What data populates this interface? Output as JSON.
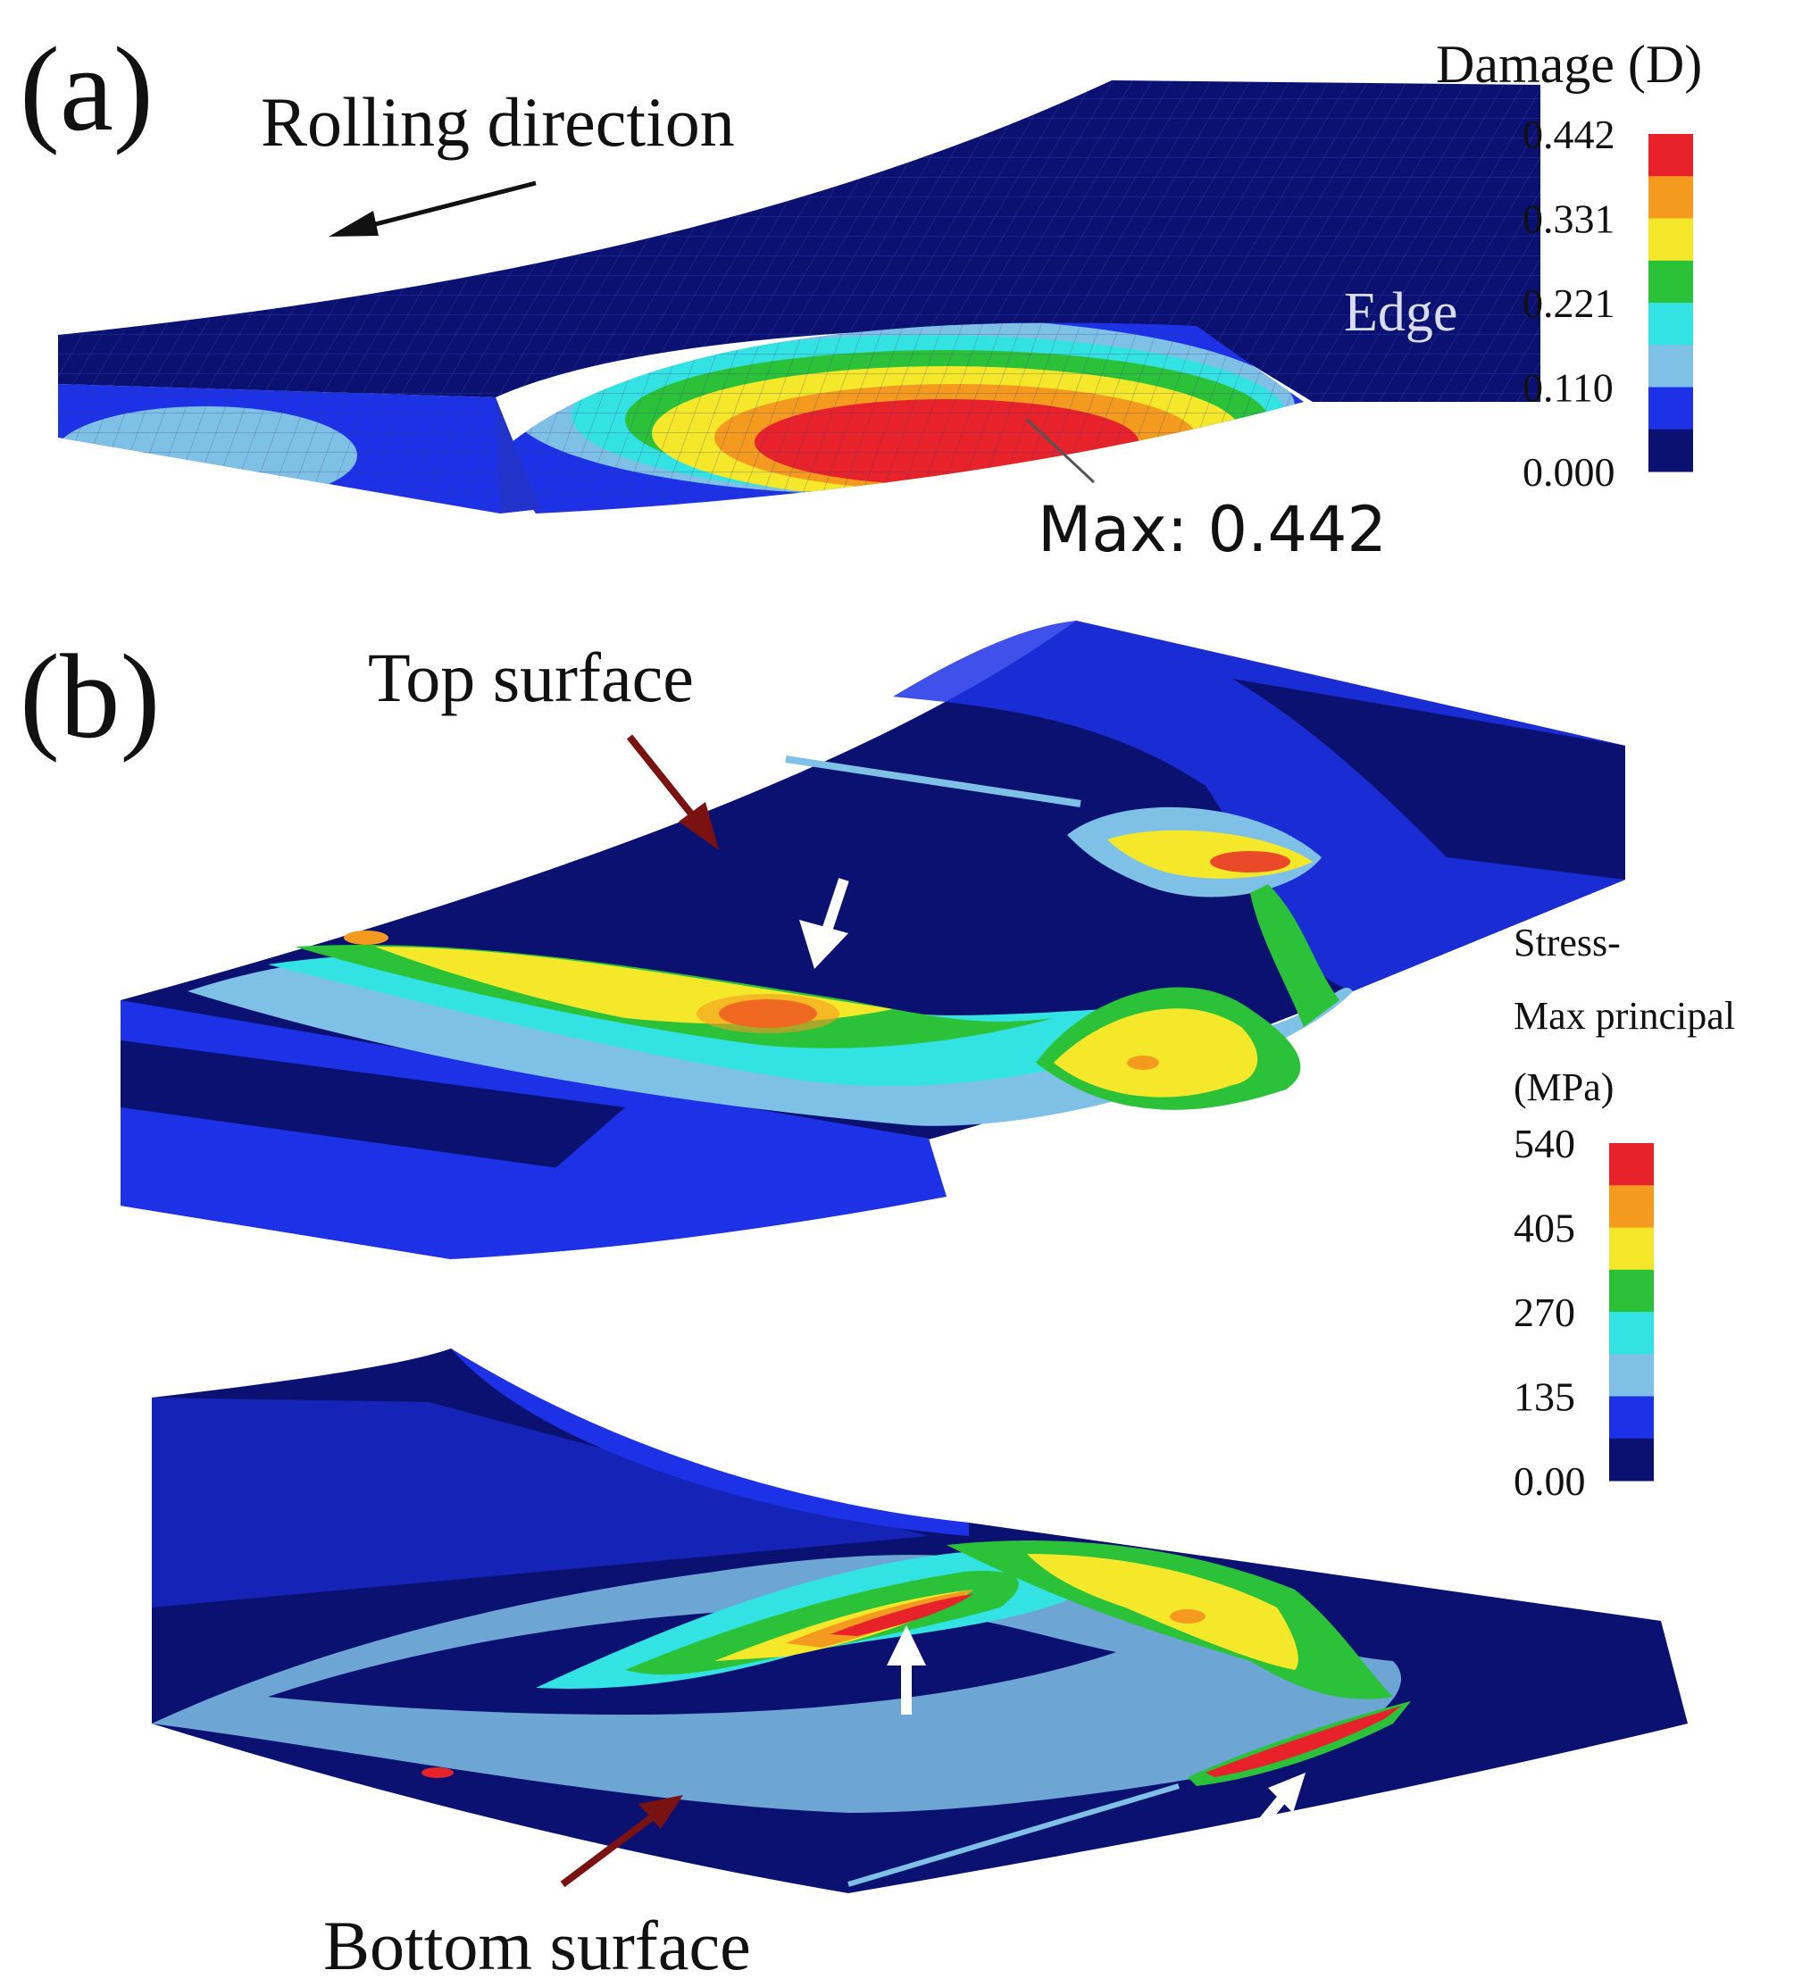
{
  "panel_a": {
    "label": "(a)",
    "rolling_direction": "Rolling direction",
    "edge_label": "Edge",
    "max_callout": "Max: 0.442",
    "legend": {
      "title": "Damage (D)",
      "ticks": [
        "0.442",
        "0.331",
        "0.221",
        "0.110",
        "0.000"
      ],
      "colors": [
        "#e8222a",
        "#f39a1f",
        "#f5e82a",
        "#2bc23a",
        "#33e3e3",
        "#7fc1e6",
        "#1d32e6",
        "#0b1170"
      ]
    }
  },
  "panel_b": {
    "label": "(b)",
    "top_surface": "Top surface",
    "bottom_surface": "Bottom surface",
    "legend": {
      "title_line1": "Stress-",
      "title_line2": "Max principal",
      "title_line3": "(MPa)",
      "ticks": [
        "540",
        "405",
        "270",
        "135",
        "0.00"
      ],
      "colors": [
        "#e8222a",
        "#f39a1f",
        "#f5e82a",
        "#2bc23a",
        "#33e3e3",
        "#7fc1e6",
        "#1d32e6",
        "#0b1170"
      ]
    }
  },
  "colors": {
    "arrow_dark_red": "#7a1212",
    "arrow_black": "#111111",
    "arrow_white": "#ffffff",
    "mesh_dark": "#0b1170"
  }
}
